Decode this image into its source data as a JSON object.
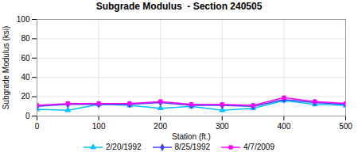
{
  "chart_data": {
    "type": "line",
    "title": "Subgrade Modulus  - Section 240505",
    "xlabel": "Station (ft.)",
    "ylabel": "Subgrade Modulus (ksi)",
    "x": [
      0,
      50,
      100,
      150,
      200,
      250,
      300,
      350,
      400,
      450,
      500
    ],
    "series": [
      {
        "name": "2/20/1992",
        "color": "#00BFFF",
        "marker": "triangle",
        "values": [
          7,
          6,
          12,
          11,
          8,
          10,
          6,
          8,
          16,
          12,
          11
        ]
      },
      {
        "name": "8/25/1992",
        "color": "#4040FF",
        "marker": "diamond",
        "values": [
          10,
          12,
          12,
          12,
          14,
          11,
          11,
          10,
          17,
          14,
          12
        ]
      },
      {
        "name": "4/7/2009",
        "color": "#FF00FF",
        "marker": "square",
        "values": [
          11,
          13,
          13,
          13,
          15,
          12,
          12,
          11,
          19,
          15,
          13
        ]
      }
    ],
    "xlim": [
      0,
      500
    ],
    "ylim": [
      0,
      100
    ],
    "xticks": [
      0,
      100,
      200,
      300,
      400,
      500
    ],
    "yticks": [
      0,
      20,
      40,
      60,
      80,
      100
    ],
    "grid": true,
    "legend": "bottom"
  }
}
